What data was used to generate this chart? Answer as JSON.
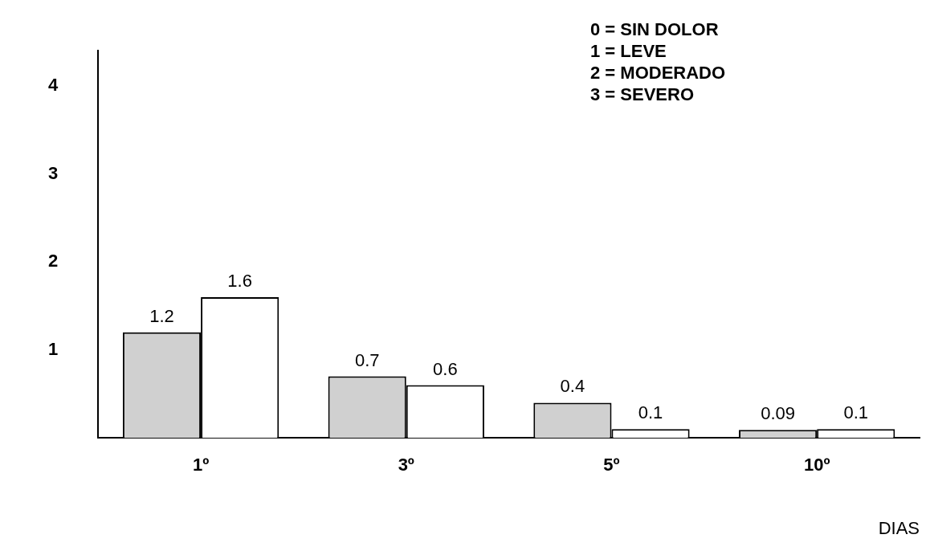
{
  "chart_data": {
    "type": "bar",
    "categories": [
      "1º",
      "3º",
      "5º",
      "10º"
    ],
    "series": [
      {
        "color": "#d0d0d0",
        "values": [
          1.2,
          0.7,
          0.4,
          0.09
        ]
      },
      {
        "color": "#ffffff",
        "values": [
          1.6,
          0.6,
          0.1,
          0.1
        ]
      }
    ],
    "ylim": [
      0,
      4.4
    ],
    "yticks": [
      1,
      2,
      3,
      4
    ],
    "grid": false,
    "legend": false,
    "data_labels": true,
    "xlabel": "DIAS",
    "annotations": [
      "0 = SIN DOLOR",
      "1 = LEVE",
      "2 = MODERADO",
      "3 = SEVERO"
    ]
  }
}
